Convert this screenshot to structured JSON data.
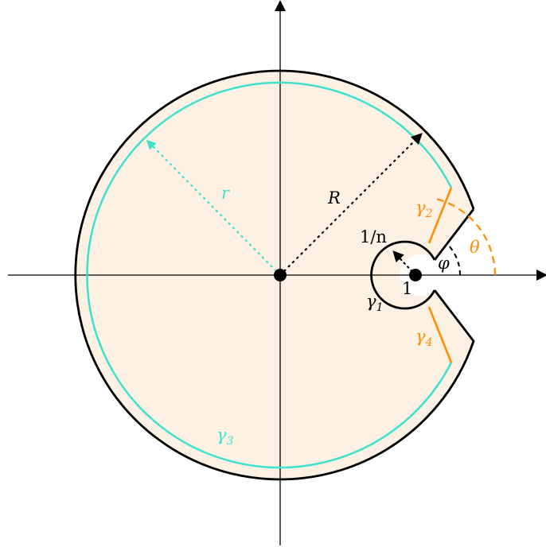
{
  "labels": {
    "r": "r",
    "R": "R",
    "one_over_n": "1/n",
    "one": "1",
    "phi": "φ",
    "theta": "θ",
    "gamma1": "γ",
    "gamma1_sub": "1",
    "gamma2": "γ",
    "gamma2_sub": "2",
    "gamma3": "γ",
    "gamma3_sub": "3",
    "gamma4": "γ",
    "gamma4_sub": "4"
  },
  "colors": {
    "region_fill": "#fcf1e2",
    "contour": "#000000",
    "inner_circle": "#40e0d0",
    "orange": "#ff8c00",
    "axes": "#000000"
  }
}
